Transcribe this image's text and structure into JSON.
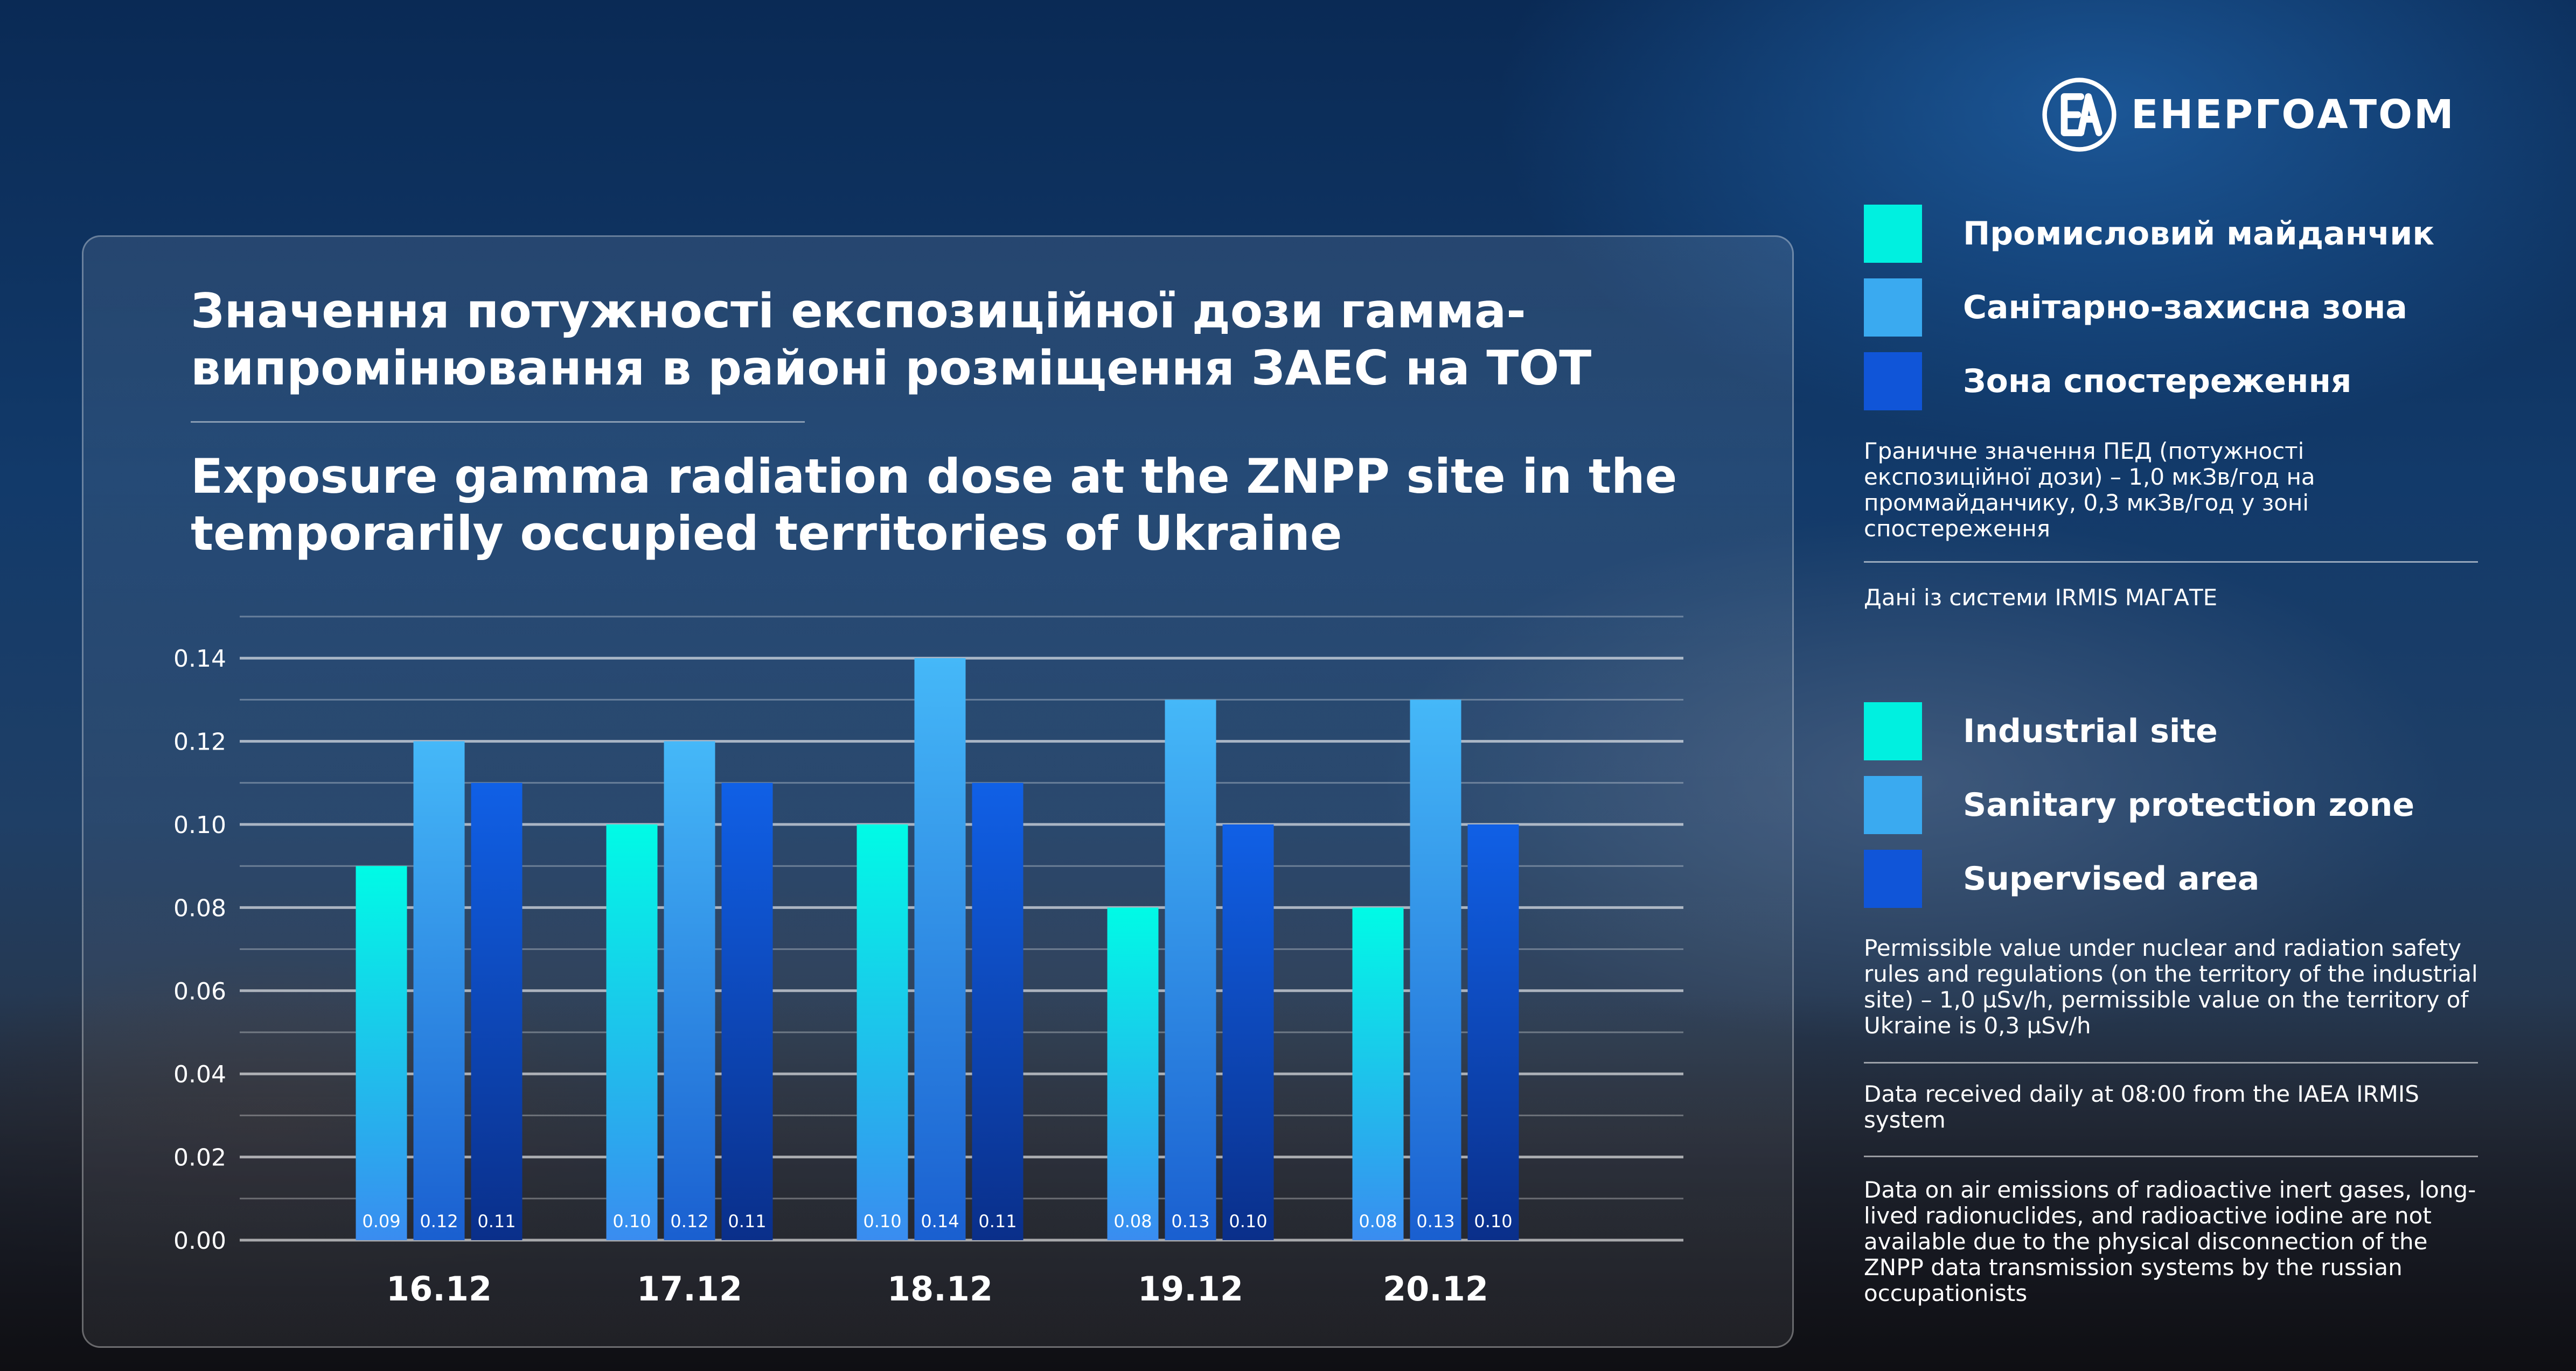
{
  "brand": {
    "name": "ЕНЕРГОАТОМ",
    "logo_icon": "energoatom-logo-icon"
  },
  "title_uk": "Значення потужності експозиційної дози гамма-випромінювання в районі розміщення ЗАЕС на ТОТ",
  "title_en": "Exposure gamma radiation dose at the ZNPP site in the temporarily occupied territories of Ukraine",
  "chart_data": {
    "type": "bar",
    "categories": [
      "16.12",
      "17.12",
      "18.12",
      "19.12",
      "20.12"
    ],
    "series": [
      {
        "name": "Industrial site",
        "values": [
          0.09,
          0.1,
          0.1,
          0.08,
          0.08
        ],
        "labels": [
          "0.09",
          "0.10",
          "0.10",
          "0.08",
          "0.08"
        ],
        "color": "#00f0e0"
      },
      {
        "name": "Sanitary protection zone",
        "values": [
          0.12,
          0.12,
          0.14,
          0.13,
          0.13
        ],
        "labels": [
          "0.12",
          "0.12",
          "0.14",
          "0.13",
          "0.13"
        ],
        "color": "#3aaaf0"
      },
      {
        "name": "Supervised area",
        "values": [
          0.11,
          0.11,
          0.11,
          0.1,
          0.1
        ],
        "labels": [
          "0.11",
          "0.11",
          "0.11",
          "0.10",
          "0.10"
        ],
        "color": "#1055d8"
      }
    ],
    "yticks": [
      "0.00",
      "0.02",
      "0.04",
      "0.06",
      "0.08",
      "0.10",
      "0.12",
      "0.14"
    ],
    "ylim": [
      0,
      0.15
    ],
    "grid": true,
    "legend_position": "right"
  },
  "legend_uk": {
    "items": [
      {
        "label": "Промисловий майданчик",
        "color": "#00f0e0"
      },
      {
        "label": "Санітарно-захисна зона",
        "color": "#3aaaf0"
      },
      {
        "label": "Зона спостереження",
        "color": "#1055d8"
      }
    ],
    "limit_note": "Граничне значення ПЕД (потужності експозиційної дози) – 1,0 мкЗв/год на проммайданчику, 0,3 мкЗв/год у зоні спостереження",
    "source_note": "Дані із системи IRMIS МАГАТЕ"
  },
  "legend_en": {
    "items": [
      {
        "label": "Industrial site",
        "color": "#00f0e0"
      },
      {
        "label": "Sanitary protection zone",
        "color": "#3aaaf0"
      },
      {
        "label": "Supervised area",
        "color": "#1055d8"
      }
    ],
    "limit_note": "Permissible value under nuclear and radiation safety rules and regulations (on the territory of the industrial site) – 1,0 µSv/h, permissible value on the territory of Ukraine is 0,3 µSv/h",
    "source_note": "Data received daily at 08:00 from the IAEA IRMIS system",
    "emissions_note": "Data on air emissions of radioactive inert gases, long-lived radionuclides, and radioactive iodine are not available due to the physical disconnection of the ZNPP data transmission systems by the russian occupationists"
  }
}
